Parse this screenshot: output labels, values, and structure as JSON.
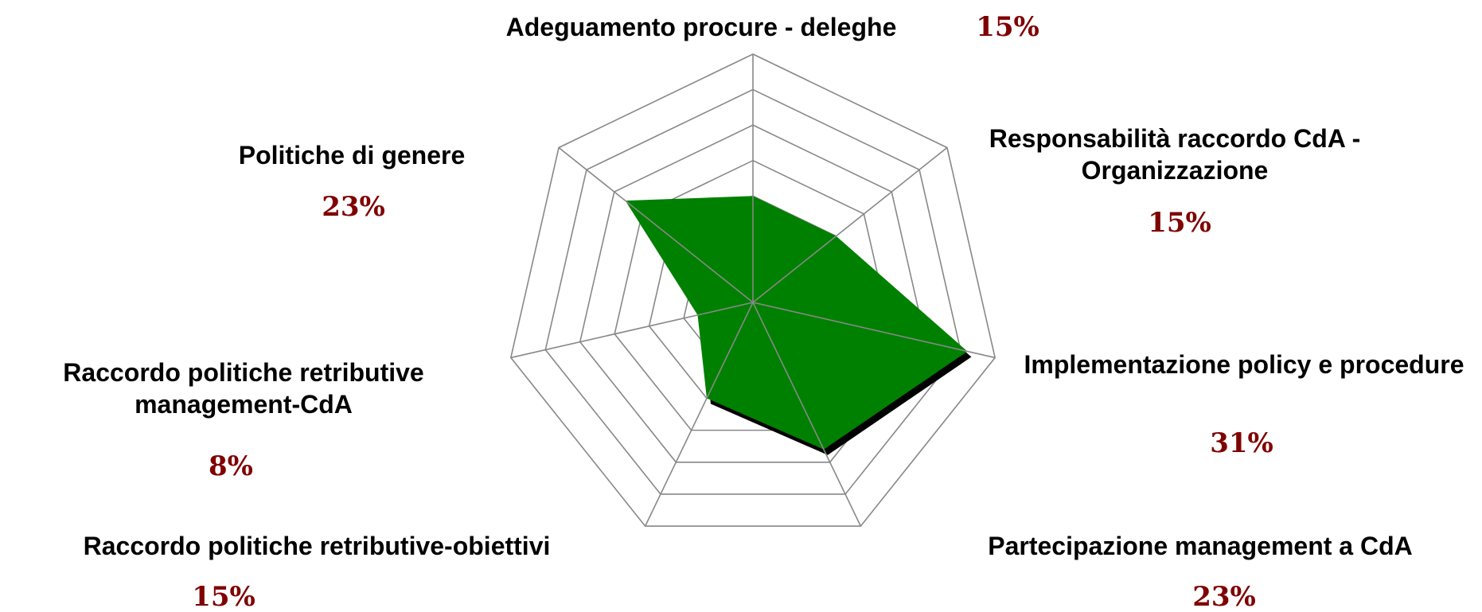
{
  "chart_data": {
    "type": "radar",
    "categories": [
      "Adeguamento procure - deleghe",
      "Responsabilità raccordo CdA - Organizzazione",
      "Implementazione  policy e procedure",
      "Partecipazione management a CdA",
      "Raccordo politiche retributive-obiettivi",
      "Raccordo politiche retributive management-CdA",
      "Politiche di genere"
    ],
    "values": [
      15,
      15,
      31,
      23,
      15,
      8,
      23
    ],
    "value_labels": [
      "15%",
      "15%",
      "31%",
      "23%",
      "15%",
      "8%",
      "23%"
    ],
    "color": "#008000",
    "label_color": "#7f0000",
    "rlim": [
      0,
      35
    ],
    "rticks": [
      5,
      10,
      15,
      20,
      25,
      30,
      35
    ],
    "grid": true
  }
}
